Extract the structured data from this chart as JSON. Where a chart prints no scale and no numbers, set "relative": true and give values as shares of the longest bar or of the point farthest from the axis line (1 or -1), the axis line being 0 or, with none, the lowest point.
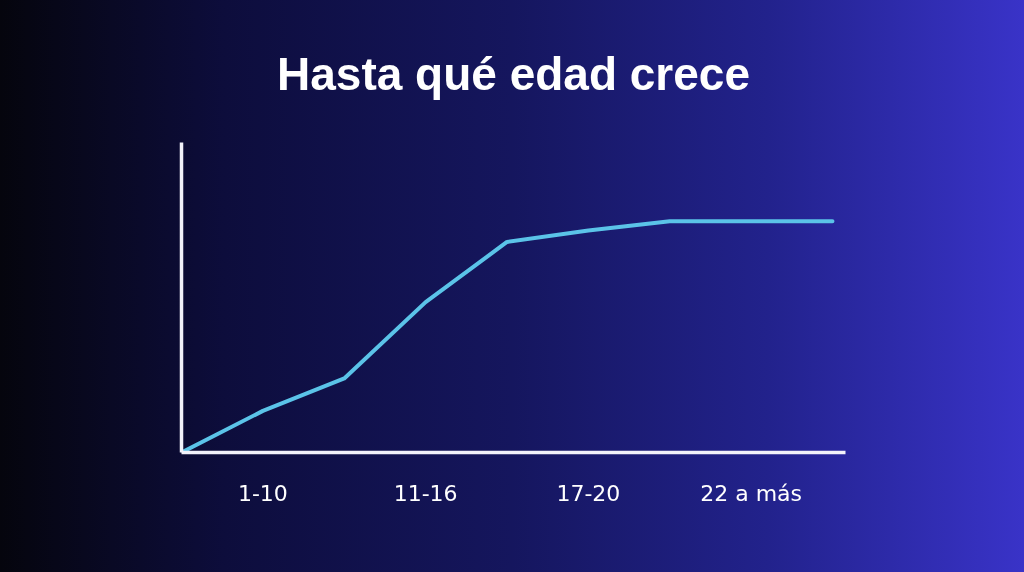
{
  "chart_data": {
    "type": "line",
    "title": "Hasta qué edad crece",
    "relative": true,
    "categories": [
      null,
      "1-10",
      null,
      "11-16",
      null,
      "17-20",
      null,
      "22 a más",
      null
    ],
    "series": [
      {
        "color": "#5bc3e8",
        "values": [
          0,
          0.18,
          0.32,
          0.65,
          0.91,
          0.96,
          1,
          1,
          1
        ]
      }
    ],
    "marker": "none",
    "line_style": "solid"
  }
}
